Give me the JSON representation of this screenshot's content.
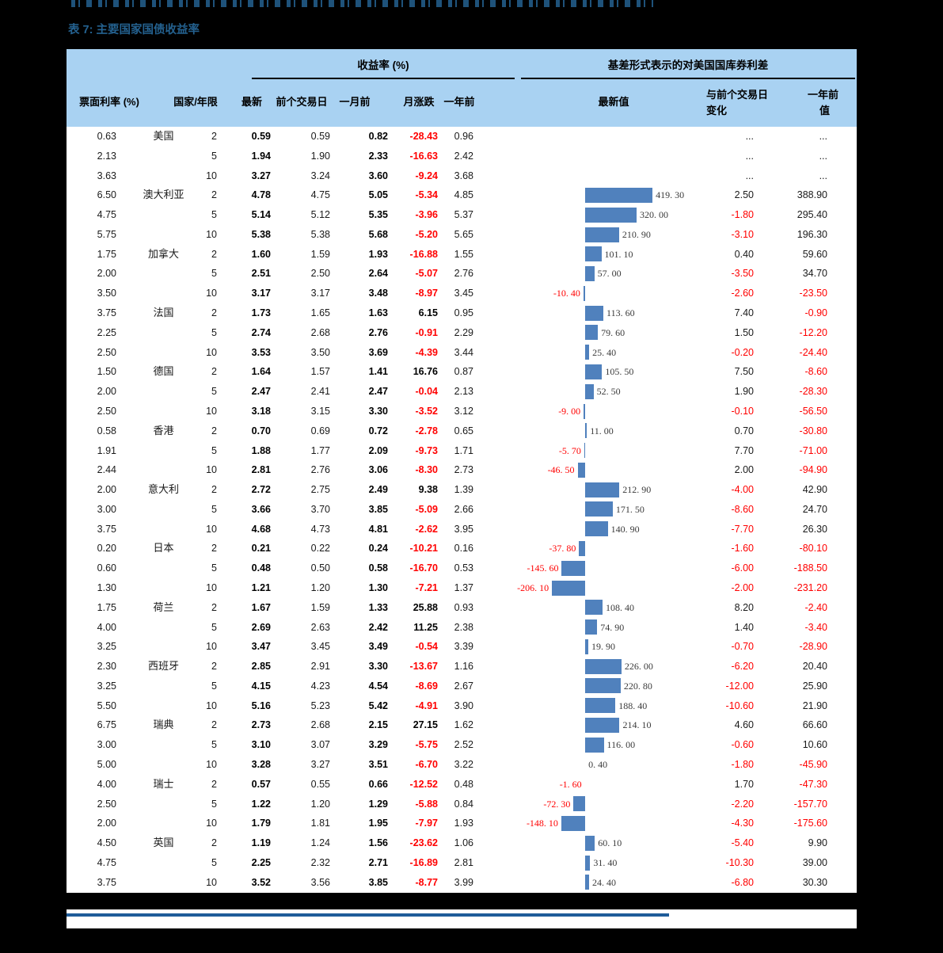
{
  "page": {
    "clipped_heading_present": true,
    "background": "#000000"
  },
  "colors": {
    "header_bg": "#a9d2f2",
    "bar_blue": "#5081bd",
    "negative_red": "#ff0000",
    "title_blue": "#24618f",
    "rule_blue": "#1f5c99"
  },
  "table": {
    "caption": "表 7: 主要国家国债收益率",
    "header": {
      "group_yield": "收益率 (%)",
      "group_spread": "基差形式表示的对美国国库券利差",
      "cols": {
        "coupon": "票面利率 (%)",
        "country_tenor": "国家/年限",
        "latest": "最新",
        "prev_day": "前个交易日",
        "month_ago": "一月前",
        "month_chg": "月涨跌",
        "year_ago": "一年前",
        "latest_value": "最新值",
        "chg_line1": "与前个交易日",
        "chg_line2": "变化",
        "year_line1": "一年前",
        "year_line2": "值"
      }
    },
    "row_columns": [
      "coupon",
      "country",
      "tenor",
      "latest",
      "prev_day",
      "month_ago",
      "month_chg",
      "year_ago",
      "spread_value",
      "spread_label",
      "chg_vs_prev",
      "year_ago_value"
    ],
    "rows": [
      [
        "0.63",
        "美国",
        "2",
        "0.59",
        "0.59",
        "0.82",
        "-28.43",
        "0.96",
        null,
        "",
        "...",
        "..."
      ],
      [
        "2.13",
        "",
        "5",
        "1.94",
        "1.90",
        "2.33",
        "-16.63",
        "2.42",
        null,
        "",
        "...",
        "..."
      ],
      [
        "3.63",
        "",
        "10",
        "3.27",
        "3.24",
        "3.60",
        "-9.24",
        "3.68",
        null,
        "",
        "...",
        "..."
      ],
      [
        "6.50",
        "澳大利亚",
        "2",
        "4.78",
        "4.75",
        "5.05",
        "-5.34",
        "4.85",
        419.3,
        "419. 30",
        "2.50",
        "388.90"
      ],
      [
        "4.75",
        "",
        "5",
        "5.14",
        "5.12",
        "5.35",
        "-3.96",
        "5.37",
        320.0,
        "320. 00",
        "-1.80",
        "295.40"
      ],
      [
        "5.75",
        "",
        "10",
        "5.38",
        "5.38",
        "5.68",
        "-5.20",
        "5.65",
        210.9,
        "210. 90",
        "-3.10",
        "196.30"
      ],
      [
        "1.75",
        "加拿大",
        "2",
        "1.60",
        "1.59",
        "1.93",
        "-16.88",
        "1.55",
        101.1,
        "101. 10",
        "0.40",
        "59.60"
      ],
      [
        "2.00",
        "",
        "5",
        "2.51",
        "2.50",
        "2.64",
        "-5.07",
        "2.76",
        57.0,
        "57. 00",
        "-3.50",
        "34.70"
      ],
      [
        "3.50",
        "",
        "10",
        "3.17",
        "3.17",
        "3.48",
        "-8.97",
        "3.45",
        -10.4,
        "-10. 40",
        "-2.60",
        "-23.50"
      ],
      [
        "3.75",
        "法国",
        "2",
        "1.73",
        "1.65",
        "1.63",
        "6.15",
        "0.95",
        113.6,
        "113. 60",
        "7.40",
        "-0.90"
      ],
      [
        "2.25",
        "",
        "5",
        "2.74",
        "2.68",
        "2.76",
        "-0.91",
        "2.29",
        79.6,
        "79. 60",
        "1.50",
        "-12.20"
      ],
      [
        "2.50",
        "",
        "10",
        "3.53",
        "3.50",
        "3.69",
        "-4.39",
        "3.44",
        25.4,
        "25. 40",
        "-0.20",
        "-24.40"
      ],
      [
        "1.50",
        "德国",
        "2",
        "1.64",
        "1.57",
        "1.41",
        "16.76",
        "0.87",
        105.5,
        "105. 50",
        "7.50",
        "-8.60"
      ],
      [
        "2.00",
        "",
        "5",
        "2.47",
        "2.41",
        "2.47",
        "-0.04",
        "2.13",
        52.5,
        "52. 50",
        "1.90",
        "-28.30"
      ],
      [
        "2.50",
        "",
        "10",
        "3.18",
        "3.15",
        "3.30",
        "-3.52",
        "3.12",
        -9.0,
        "-9. 00",
        "-0.10",
        "-56.50"
      ],
      [
        "0.58",
        "香港",
        "2",
        "0.70",
        "0.69",
        "0.72",
        "-2.78",
        "0.65",
        11.0,
        "11. 00",
        "0.70",
        "-30.80"
      ],
      [
        "1.91",
        "",
        "5",
        "1.88",
        "1.77",
        "2.09",
        "-9.73",
        "1.71",
        -5.7,
        "-5. 70",
        "7.70",
        "-71.00"
      ],
      [
        "2.44",
        "",
        "10",
        "2.81",
        "2.76",
        "3.06",
        "-8.30",
        "2.73",
        -46.5,
        "-46. 50",
        "2.00",
        "-94.90"
      ],
      [
        "2.00",
        "意大利",
        "2",
        "2.72",
        "2.75",
        "2.49",
        "9.38",
        "1.39",
        212.9,
        "212. 90",
        "-4.00",
        "42.90"
      ],
      [
        "3.00",
        "",
        "5",
        "3.66",
        "3.70",
        "3.85",
        "-5.09",
        "2.66",
        171.5,
        "171. 50",
        "-8.60",
        "24.70"
      ],
      [
        "3.75",
        "",
        "10",
        "4.68",
        "4.73",
        "4.81",
        "-2.62",
        "3.95",
        140.9,
        "140. 90",
        "-7.70",
        "26.30"
      ],
      [
        "0.20",
        "日本",
        "2",
        "0.21",
        "0.22",
        "0.24",
        "-10.21",
        "0.16",
        -37.8,
        "-37. 80",
        "-1.60",
        "-80.10"
      ],
      [
        "0.60",
        "",
        "5",
        "0.48",
        "0.50",
        "0.58",
        "-16.70",
        "0.53",
        -145.6,
        "-145. 60",
        "-6.00",
        "-188.50"
      ],
      [
        "1.30",
        "",
        "10",
        "1.21",
        "1.20",
        "1.30",
        "-7.21",
        "1.37",
        -206.1,
        "-206. 10",
        "-2.00",
        "-231.20"
      ],
      [
        "1.75",
        "荷兰",
        "2",
        "1.67",
        "1.59",
        "1.33",
        "25.88",
        "0.93",
        108.4,
        "108. 40",
        "8.20",
        "-2.40"
      ],
      [
        "4.00",
        "",
        "5",
        "2.69",
        "2.63",
        "2.42",
        "11.25",
        "2.38",
        74.9,
        "74. 90",
        "1.40",
        "-3.40"
      ],
      [
        "3.25",
        "",
        "10",
        "3.47",
        "3.45",
        "3.49",
        "-0.54",
        "3.39",
        19.9,
        "19. 90",
        "-0.70",
        "-28.90"
      ],
      [
        "2.30",
        "西班牙",
        "2",
        "2.85",
        "2.91",
        "3.30",
        "-13.67",
        "1.16",
        226.0,
        "226. 00",
        "-6.20",
        "20.40"
      ],
      [
        "3.25",
        "",
        "5",
        "4.15",
        "4.23",
        "4.54",
        "-8.69",
        "2.67",
        220.8,
        "220. 80",
        "-12.00",
        "25.90"
      ],
      [
        "5.50",
        "",
        "10",
        "5.16",
        "5.23",
        "5.42",
        "-4.91",
        "3.90",
        188.4,
        "188. 40",
        "-10.60",
        "21.90"
      ],
      [
        "6.75",
        "瑞典",
        "2",
        "2.73",
        "2.68",
        "2.15",
        "27.15",
        "1.62",
        214.1,
        "214. 10",
        "4.60",
        "66.60"
      ],
      [
        "3.00",
        "",
        "5",
        "3.10",
        "3.07",
        "3.29",
        "-5.75",
        "2.52",
        116.0,
        "116. 00",
        "-0.60",
        "10.60"
      ],
      [
        "5.00",
        "",
        "10",
        "3.28",
        "3.27",
        "3.51",
        "-6.70",
        "3.22",
        0.4,
        "0. 40",
        "-1.80",
        "-45.90"
      ],
      [
        "4.00",
        "瑞士",
        "2",
        "0.57",
        "0.55",
        "0.66",
        "-12.52",
        "0.48",
        -1.6,
        "-1. 60",
        "1.70",
        "-47.30"
      ],
      [
        "2.50",
        "",
        "5",
        "1.22",
        "1.20",
        "1.29",
        "-5.88",
        "0.84",
        -72.3,
        "-72. 30",
        "-2.20",
        "-157.70"
      ],
      [
        "2.00",
        "",
        "10",
        "1.79",
        "1.81",
        "1.95",
        "-7.97",
        "1.93",
        -148.1,
        "-148. 10",
        "-4.30",
        "-175.60"
      ],
      [
        "4.50",
        "英国",
        "2",
        "1.19",
        "1.24",
        "1.56",
        "-23.62",
        "1.06",
        60.1,
        "60. 10",
        "-5.40",
        "9.90"
      ],
      [
        "4.75",
        "",
        "5",
        "2.25",
        "2.32",
        "2.71",
        "-16.89",
        "2.81",
        31.4,
        "31. 40",
        "-10.30",
        "39.00"
      ],
      [
        "3.75",
        "",
        "10",
        "3.52",
        "3.56",
        "3.85",
        "-8.77",
        "3.99",
        24.4,
        "24. 40",
        "-6.80",
        "30.30"
      ]
    ]
  }
}
